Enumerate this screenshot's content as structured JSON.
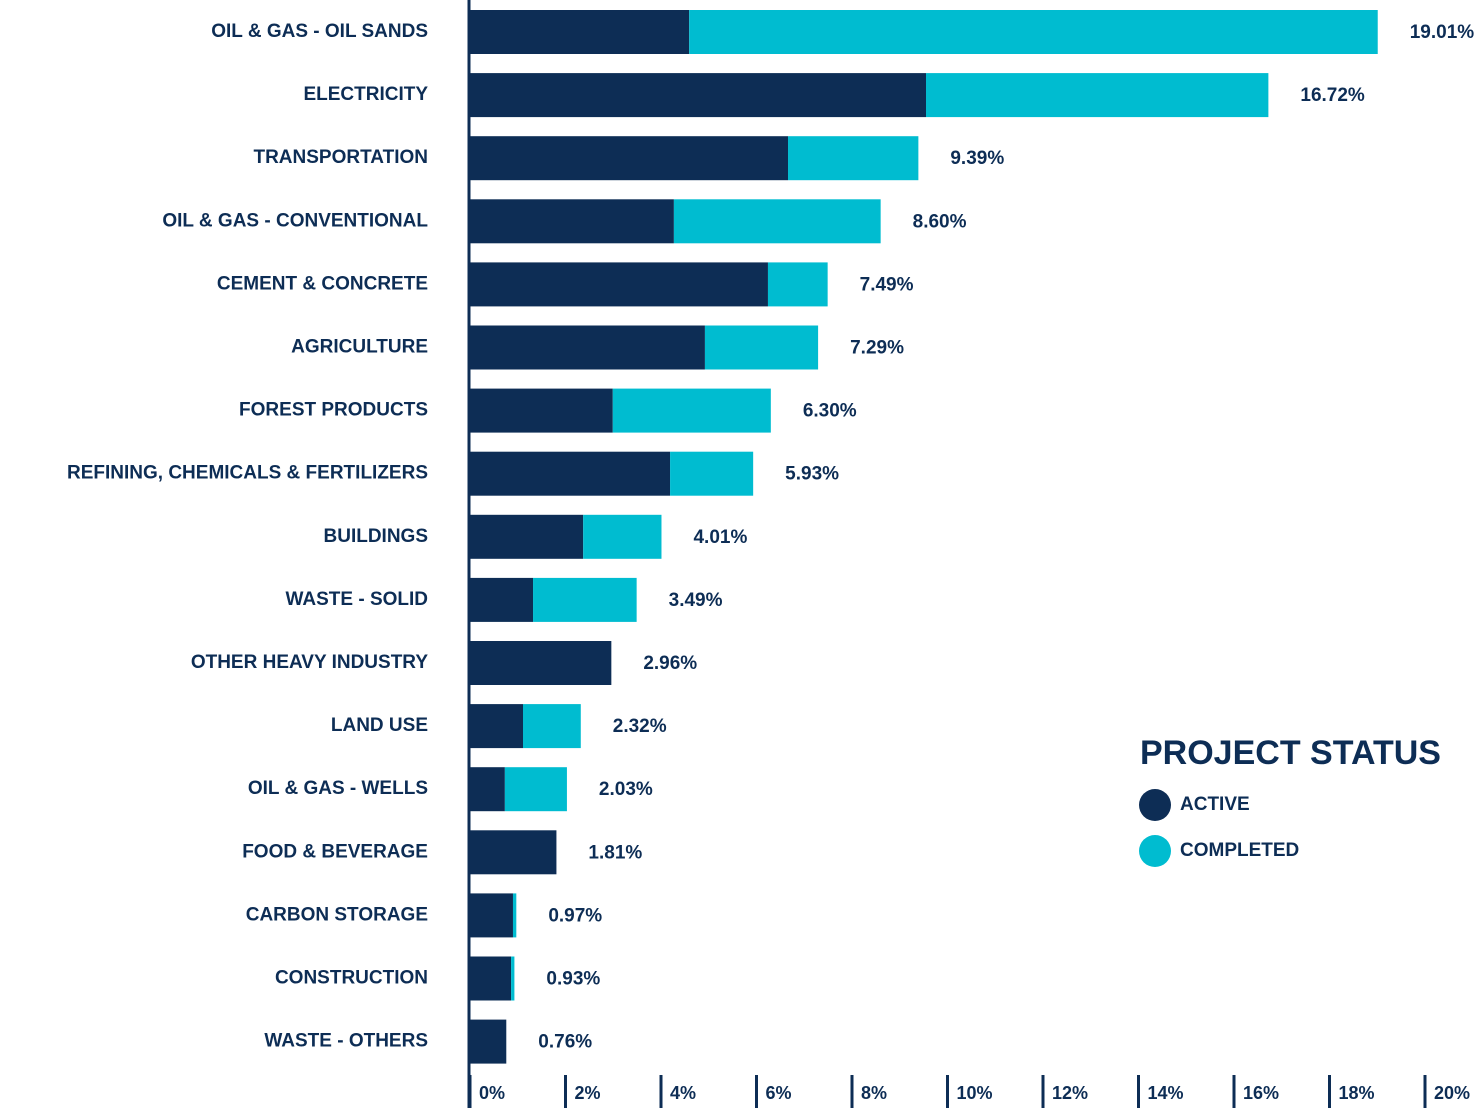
{
  "chart_data": {
    "type": "stacked-bar",
    "orientation": "horizontal",
    "categories": [
      "OIL & GAS - OIL SANDS",
      "ELECTRICITY",
      "TRANSPORTATION",
      "OIL & GAS - CONVENTIONAL",
      "CEMENT & CONCRETE",
      "AGRICULTURE",
      "FOREST PRODUCTS",
      "REFINING, CHEMICALS & FERTILIZERS",
      "BUILDINGS",
      "WASTE - SOLID",
      "OTHER HEAVY INDUSTRY",
      "LAND USE",
      "OIL & GAS - WELLS",
      "FOOD & BEVERAGE",
      "CARBON STORAGE",
      "CONSTRUCTION",
      "WASTE - OTHERS"
    ],
    "series": [
      {
        "name": "ACTIVE",
        "color": "#0d2d55",
        "values": [
          4.59,
          9.55,
          6.66,
          4.27,
          6.24,
          4.92,
          2.99,
          4.19,
          2.37,
          1.32,
          2.96,
          1.11,
          0.73,
          1.81,
          0.9,
          0.86,
          0.76
        ]
      },
      {
        "name": "COMPLETED",
        "color": "#00bcd0",
        "values": [
          14.42,
          7.17,
          2.73,
          4.33,
          1.25,
          2.37,
          3.31,
          1.74,
          1.64,
          2.17,
          0,
          1.21,
          1.3,
          0,
          0.07,
          0.07,
          0
        ]
      }
    ],
    "totals": [
      19.01,
      16.72,
      9.39,
      8.6,
      7.49,
      7.29,
      6.3,
      5.93,
      4.01,
      3.49,
      2.96,
      2.32,
      2.03,
      1.81,
      0.97,
      0.93,
      0.76
    ],
    "total_labels": [
      "19.01%",
      "16.72%",
      "9.39%",
      "8.60%",
      "7.49%",
      "7.29%",
      "6.30%",
      "5.93%",
      "4.01%",
      "3.49%",
      "2.96%",
      "2.32%",
      "2.03%",
      "1.81%",
      "0.97%",
      "0.93%",
      "0.76%"
    ],
    "xlim": [
      0,
      20
    ],
    "xticks": [
      {
        "value": 0,
        "label": "0%"
      },
      {
        "value": 2,
        "label": "2%"
      },
      {
        "value": 4,
        "label": "4%"
      },
      {
        "value": 6,
        "label": "6%"
      },
      {
        "value": 8,
        "label": "8%"
      },
      {
        "value": 10,
        "label": "10%"
      },
      {
        "value": 12,
        "label": "12%"
      },
      {
        "value": 14,
        "label": "14%"
      },
      {
        "value": 16,
        "label": "16%"
      },
      {
        "value": 18,
        "label": "18%"
      },
      {
        "value": 20,
        "label": "20%"
      }
    ],
    "legend_title": "PROJECT STATUS"
  }
}
